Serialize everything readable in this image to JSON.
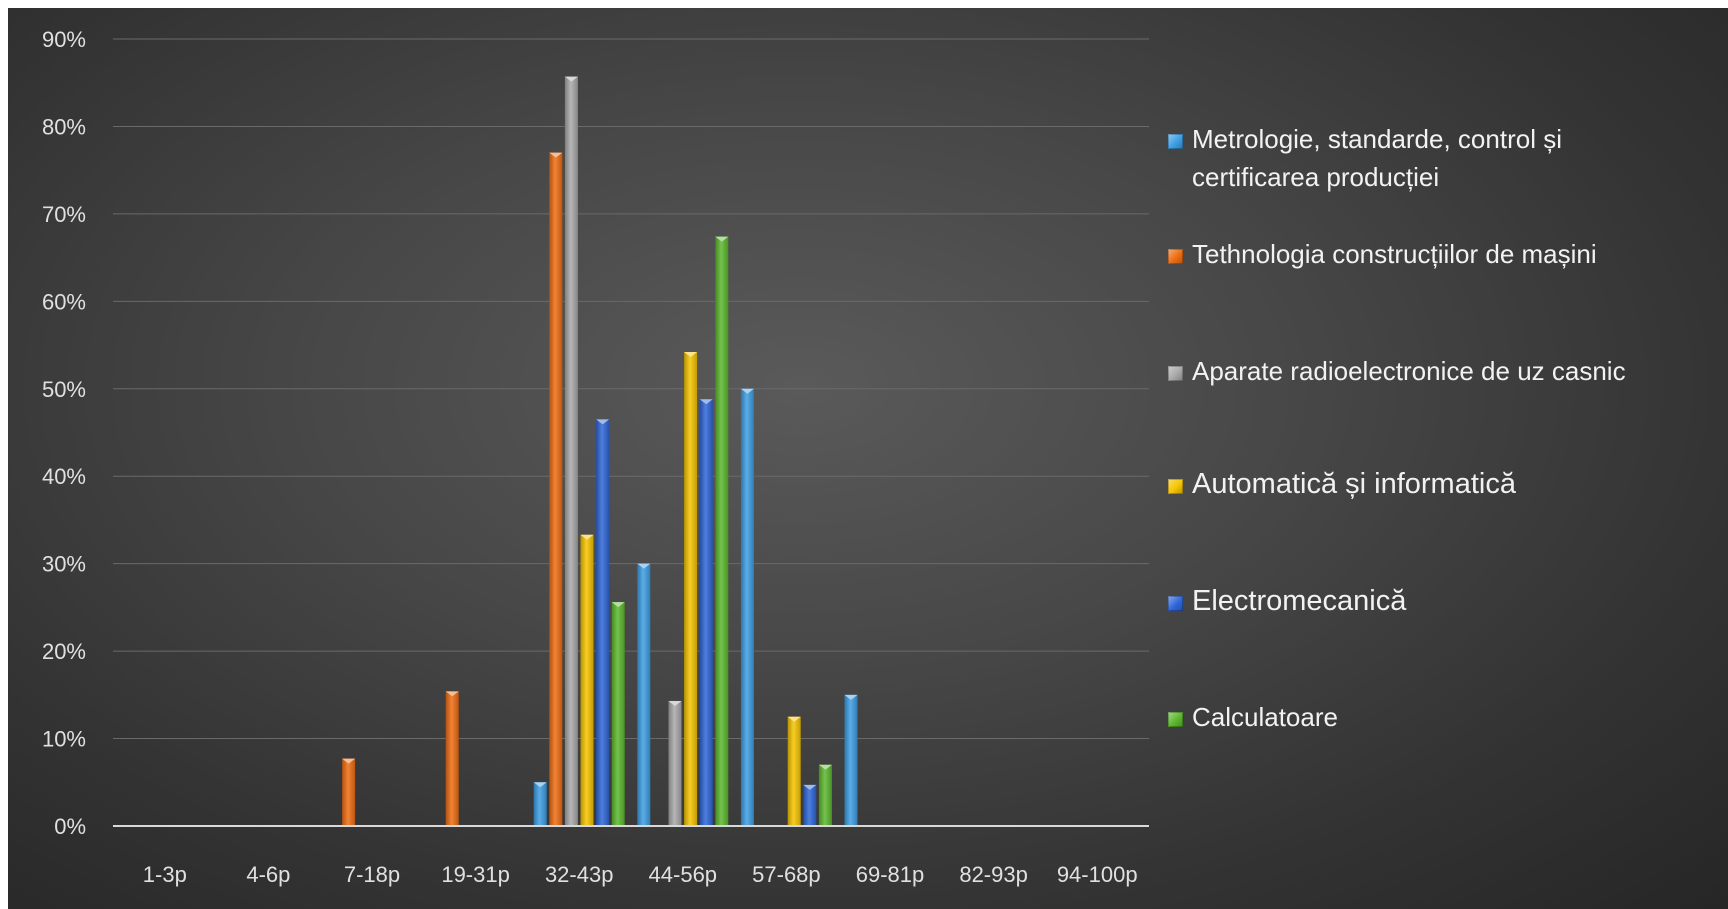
{
  "chart_data": {
    "type": "bar",
    "title": "",
    "xlabel": "",
    "ylabel": "",
    "categories": [
      "1-3p",
      "4-6p",
      "7-18p",
      "19-31p",
      "32-43p",
      "44-56p",
      "57-68p",
      "69-81p",
      "82-93p",
      "94-100p"
    ],
    "yticks": [
      "0%",
      "10%",
      "20%",
      "30%",
      "40%",
      "50%",
      "60%",
      "70%",
      "80%",
      "90%"
    ],
    "ylim": [
      0,
      90
    ],
    "grid": true,
    "legend_position": "right",
    "series": [
      {
        "name": "Metrologie, standarde, control și certificarea producției",
        "color": "#3d9ee4",
        "values": [
          0,
          0,
          0,
          0,
          5,
          30,
          50,
          15,
          0,
          0
        ]
      },
      {
        "name": "Tethnologia construcțiilor de mașini",
        "color": "#ef6d12",
        "values": [
          0,
          0,
          7.7,
          15.4,
          77,
          0,
          0,
          0,
          0,
          0
        ]
      },
      {
        "name": "Aparate radioelectronice de uz casnic",
        "color": "#a9a9a9",
        "values": [
          0,
          0,
          0,
          0,
          85.7,
          14.3,
          0,
          0,
          0,
          0
        ]
      },
      {
        "name": "Automatică și informatică",
        "color": "#f5c400",
        "values": [
          0,
          0,
          0,
          0,
          33.3,
          54.2,
          12.5,
          0,
          0,
          0
        ]
      },
      {
        "name": "Electromecanică",
        "color": "#2f67d8",
        "values": [
          0,
          0,
          0,
          0,
          46.5,
          48.8,
          4.7,
          0,
          0,
          0
        ]
      },
      {
        "name": "Calculatoare",
        "color": "#5cb82e",
        "values": [
          0,
          0,
          0,
          0,
          25.6,
          67.4,
          7,
          0,
          0,
          0
        ]
      }
    ]
  }
}
